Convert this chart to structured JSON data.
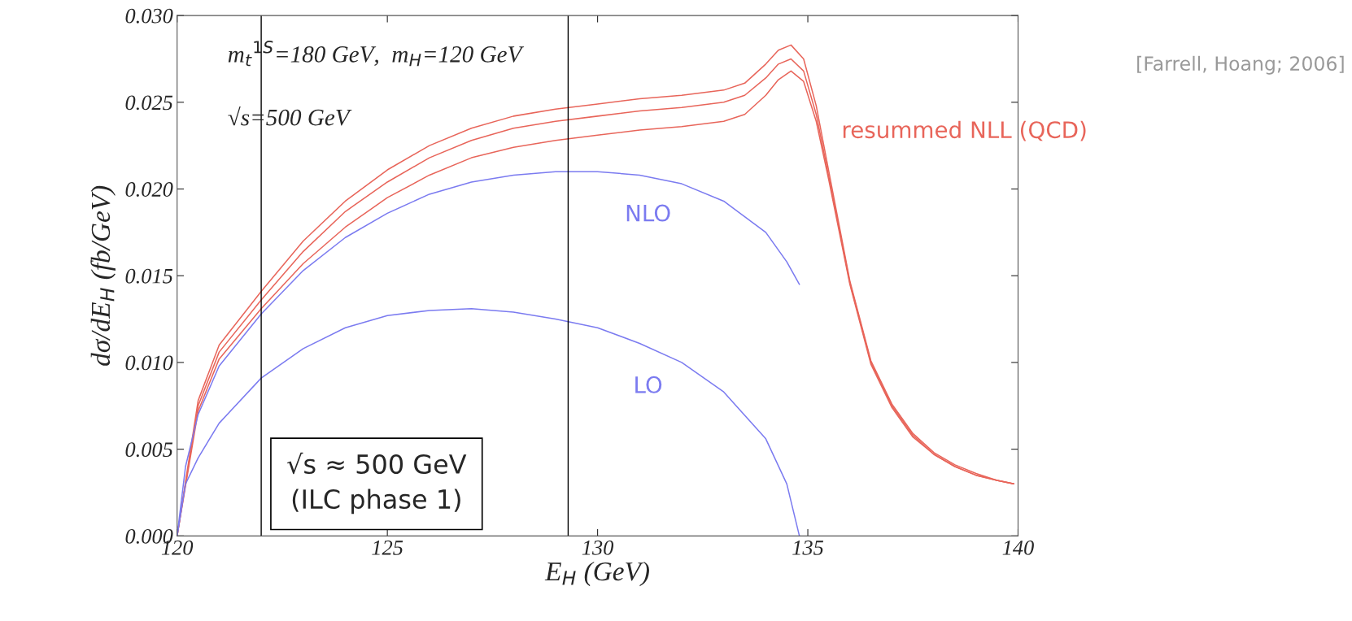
{
  "chart_data": {
    "type": "line",
    "xlabel": "E$_{H}$ (GeV)",
    "ylabel": "dσ/dE$_{H}$ (fb/GeV)",
    "xlim": [
      120,
      140
    ],
    "xticks": [
      120,
      125,
      130,
      135,
      140
    ],
    "ylim": [
      0,
      0.03
    ],
    "yticks": [
      {
        "value": 0,
        "label": "0.000"
      },
      {
        "value": 0.005,
        "label": "0.005"
      },
      {
        "value": 0.01,
        "label": "0.010"
      },
      {
        "value": 0.015,
        "label": "0.015"
      },
      {
        "value": 0.02,
        "label": "0.020"
      },
      {
        "value": 0.025,
        "label": "0.025"
      },
      {
        "value": 0.03,
        "label": "0.030"
      }
    ],
    "grid": false,
    "legend": false,
    "marker": "none",
    "line_style": "solid",
    "ref_lines": [
      {
        "axis": "x",
        "value": 122,
        "color": "#000000"
      },
      {
        "axis": "x",
        "value": 129.3,
        "color": "#000000"
      }
    ],
    "annotations": [
      {
        "text": "m$_{t}$$^{1S}$=180 GeV,  m$_{H}$=120 GeV"
      },
      {
        "text": "√s=500 GeV"
      },
      {
        "text": "[Farrell, Hoang; 2006]"
      },
      {
        "text": "√s ≈ 500 GeV\n(ILC phase 1)"
      }
    ],
    "series": [
      {
        "name": "resummed NLL (QCD)",
        "color": "#e8655a",
        "x": [
          120,
          120.5,
          121,
          122,
          123,
          124,
          125,
          126,
          127,
          128,
          129,
          130,
          131,
          132,
          133,
          133.5,
          134,
          134.3,
          134.6,
          134.9,
          135.2,
          135.5,
          136,
          136.5,
          137,
          137.5,
          138,
          138.5,
          139,
          139.5,
          139.9
        ],
        "values": [
          0,
          0.0078,
          0.011,
          0.0141,
          0.017,
          0.0193,
          0.0211,
          0.0225,
          0.0235,
          0.0242,
          0.0246,
          0.0249,
          0.0252,
          0.0254,
          0.0257,
          0.0261,
          0.0272,
          0.028,
          0.0283,
          0.0275,
          0.0248,
          0.021,
          0.0147,
          0.0101,
          0.0076,
          0.0059,
          0.0048,
          0.0041,
          0.0036,
          0.0032,
          0.003
        ]
      },
      {
        "color": "#e8655a",
        "x": [
          120,
          120.5,
          121,
          122,
          123,
          124,
          125,
          126,
          127,
          128,
          129,
          130,
          131,
          132,
          133,
          133.5,
          134,
          134.3,
          134.6,
          134.9,
          135.2,
          135.5,
          136,
          136.5,
          137,
          137.5,
          138,
          138.5,
          139,
          139.5,
          139.9
        ],
        "values": [
          0,
          0.0075,
          0.0106,
          0.0136,
          0.0164,
          0.0187,
          0.0204,
          0.0218,
          0.0228,
          0.0235,
          0.0239,
          0.0242,
          0.0245,
          0.0247,
          0.025,
          0.0254,
          0.0264,
          0.0272,
          0.0275,
          0.0268,
          0.0243,
          0.0207,
          0.0146,
          0.01,
          0.0075,
          0.0058,
          0.0047,
          0.004,
          0.0035,
          0.0032,
          0.003
        ]
      },
      {
        "color": "#e8655a",
        "x": [
          120,
          120.5,
          121,
          122,
          123,
          124,
          125,
          126,
          127,
          128,
          129,
          130,
          131,
          132,
          133,
          133.5,
          134,
          134.3,
          134.6,
          134.9,
          135.2,
          135.5,
          136,
          136.5,
          137,
          137.5,
          138,
          138.5,
          139,
          139.5,
          139.9
        ],
        "values": [
          0,
          0.0072,
          0.0102,
          0.0131,
          0.0157,
          0.0178,
          0.0195,
          0.0208,
          0.0218,
          0.0224,
          0.0228,
          0.0231,
          0.0234,
          0.0236,
          0.0239,
          0.0243,
          0.0254,
          0.0263,
          0.0268,
          0.0262,
          0.0239,
          0.0205,
          0.0145,
          0.0099,
          0.0074,
          0.0057,
          0.0047,
          0.004,
          0.0035,
          0.0032,
          0.003
        ]
      },
      {
        "name": "NLO",
        "color": "#7b7bf0",
        "x": [
          120,
          120.2,
          120.5,
          121,
          122,
          123,
          124,
          125,
          126,
          127,
          128,
          129,
          130,
          131,
          132,
          133,
          134,
          134.5,
          134.8
        ],
        "values": [
          0,
          0.004,
          0.007,
          0.0098,
          0.0128,
          0.0153,
          0.0172,
          0.0186,
          0.0197,
          0.0204,
          0.0208,
          0.021,
          0.021,
          0.0208,
          0.0203,
          0.0193,
          0.0175,
          0.0158,
          0.0145
        ]
      },
      {
        "name": "LO",
        "color": "#7b7bf0",
        "x": [
          120,
          120.2,
          120.5,
          121,
          122,
          123,
          124,
          125,
          126,
          127,
          128,
          129,
          130,
          131,
          132,
          133,
          134,
          134.5,
          134.8
        ],
        "values": [
          0,
          0.003,
          0.0045,
          0.0065,
          0.0091,
          0.0108,
          0.012,
          0.0127,
          0.013,
          0.0131,
          0.0129,
          0.0125,
          0.012,
          0.0111,
          0.01,
          0.0083,
          0.0056,
          0.003,
          0
        ]
      }
    ]
  }
}
